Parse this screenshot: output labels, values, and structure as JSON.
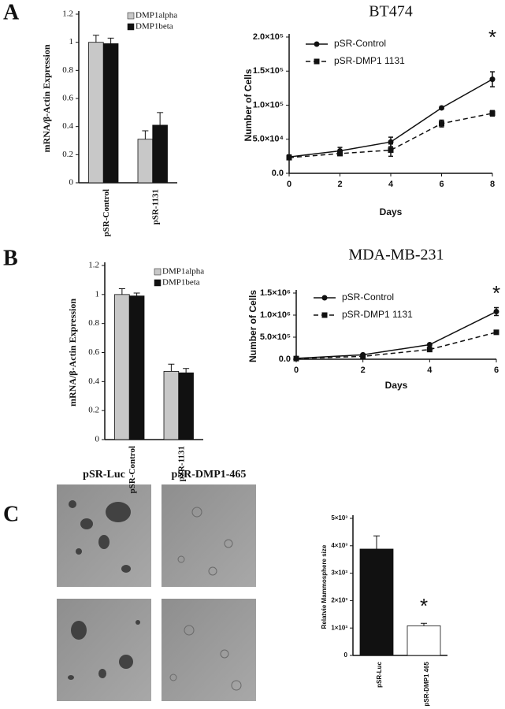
{
  "panels": {
    "letters": [
      "A",
      "B",
      "C"
    ],
    "image_titles": [
      "pSR-Luc",
      "pSR-DMP1-465"
    ]
  },
  "chart_data": [
    {
      "type": "bar",
      "ylabel": "mRNA/β-Actin  Expression",
      "categories": [
        "pSR-Control",
        "pSR-1131"
      ],
      "series": [
        {
          "name": "DMP1alpha",
          "color": "#c8c8c8",
          "values": [
            1.0,
            0.31
          ],
          "errors": [
            0.05,
            0.06
          ]
        },
        {
          "name": "DMP1beta",
          "color": "#111111",
          "values": [
            0.99,
            0.41
          ],
          "errors": [
            0.04,
            0.09
          ]
        }
      ],
      "ylim": [
        0,
        1.2
      ],
      "yticks": [
        0,
        0.2,
        0.4,
        0.6,
        0.8,
        1,
        1.2
      ]
    },
    {
      "type": "line",
      "title": "BT474",
      "xlabel": "Days",
      "ylabel": "Number of Cells",
      "annotation": "*",
      "x": [
        0,
        2,
        4,
        6,
        8
      ],
      "series": [
        {
          "name": "pSR-Control",
          "color": "#111111",
          "marker": "circle",
          "dashed": false,
          "values": [
            24000,
            33000,
            46000,
            96000,
            138000
          ],
          "errors": [
            3000,
            5000,
            7000,
            2000,
            11000
          ]
        },
        {
          "name": "pSR-DMP1 1131",
          "color": "#111111",
          "marker": "square",
          "dashed": true,
          "values": [
            23000,
            29000,
            34000,
            73000,
            88000
          ],
          "errors": [
            3000,
            3000,
            9000,
            5000,
            4000
          ]
        }
      ],
      "xlim": [
        0,
        8
      ],
      "xticks": [
        0,
        2,
        4,
        6,
        8
      ],
      "ylim": [
        0,
        200000
      ],
      "yticks": [
        {
          "value": 0,
          "label": "0.0"
        },
        {
          "value": 50000,
          "label": "5.0×10⁴"
        },
        {
          "value": 100000,
          "label": "1.0×10⁵"
        },
        {
          "value": 150000,
          "label": "1.5×10⁵"
        },
        {
          "value": 200000,
          "label": "2.0×10⁵"
        }
      ]
    },
    {
      "type": "bar",
      "ylabel": "mRNA/β-Actin  Expression",
      "categories": [
        "pSR-Control",
        "pSR-1131"
      ],
      "series": [
        {
          "name": "DMP1alpha",
          "color": "#c8c8c8",
          "values": [
            1.0,
            0.47
          ],
          "errors": [
            0.04,
            0.05
          ]
        },
        {
          "name": "DMP1beta",
          "color": "#111111",
          "values": [
            0.99,
            0.46
          ],
          "errors": [
            0.02,
            0.03
          ]
        }
      ],
      "ylim": [
        0,
        1.2
      ],
      "yticks": [
        0,
        0.2,
        0.4,
        0.6,
        0.8,
        1,
        1.2
      ]
    },
    {
      "type": "line",
      "title": "MDA-MB-231",
      "xlabel": "Days",
      "ylabel": "Number of Cells",
      "annotation": "*",
      "x": [
        0,
        2,
        4,
        6
      ],
      "series": [
        {
          "name": "pSR-Control",
          "color": "#111111",
          "marker": "circle",
          "dashed": false,
          "values": [
            20000,
            100000,
            330000,
            1080000
          ],
          "errors": [
            5000,
            10000,
            10000,
            90000
          ]
        },
        {
          "name": "pSR-DMP1 1131",
          "color": "#111111",
          "marker": "square",
          "dashed": true,
          "values": [
            15000,
            65000,
            220000,
            610000
          ],
          "errors": [
            5000,
            5000,
            10000,
            15000
          ]
        }
      ],
      "xlim": [
        0,
        6
      ],
      "xticks": [
        0,
        2,
        4,
        6
      ],
      "ylim": [
        0,
        1500000
      ],
      "yticks": [
        {
          "value": 0,
          "label": "0.0"
        },
        {
          "value": 500000,
          "label": "5.0×10⁵"
        },
        {
          "value": 1000000,
          "label": "1.0×10⁶"
        },
        {
          "value": 1500000,
          "label": "1.5×10⁶"
        }
      ]
    },
    {
      "type": "bar",
      "ylabel": "Relatvie Mammosphere size",
      "annotation": "*",
      "categories": [
        "pSR-Luc",
        "pSR-DMP1 465"
      ],
      "values": [
        3880,
        1080
      ],
      "errors": [
        480,
        90
      ],
      "colors": [
        "#111111",
        "#ffffff"
      ],
      "ylim": [
        0,
        5000
      ],
      "yticks": [
        {
          "value": 0,
          "label": "0"
        },
        {
          "value": 1000,
          "label": "1×10³"
        },
        {
          "value": 2000,
          "label": "2×10³"
        },
        {
          "value": 3000,
          "label": "3×10³"
        },
        {
          "value": 4000,
          "label": "4×10³"
        },
        {
          "value": 5000,
          "label": "5×10³"
        }
      ]
    }
  ]
}
